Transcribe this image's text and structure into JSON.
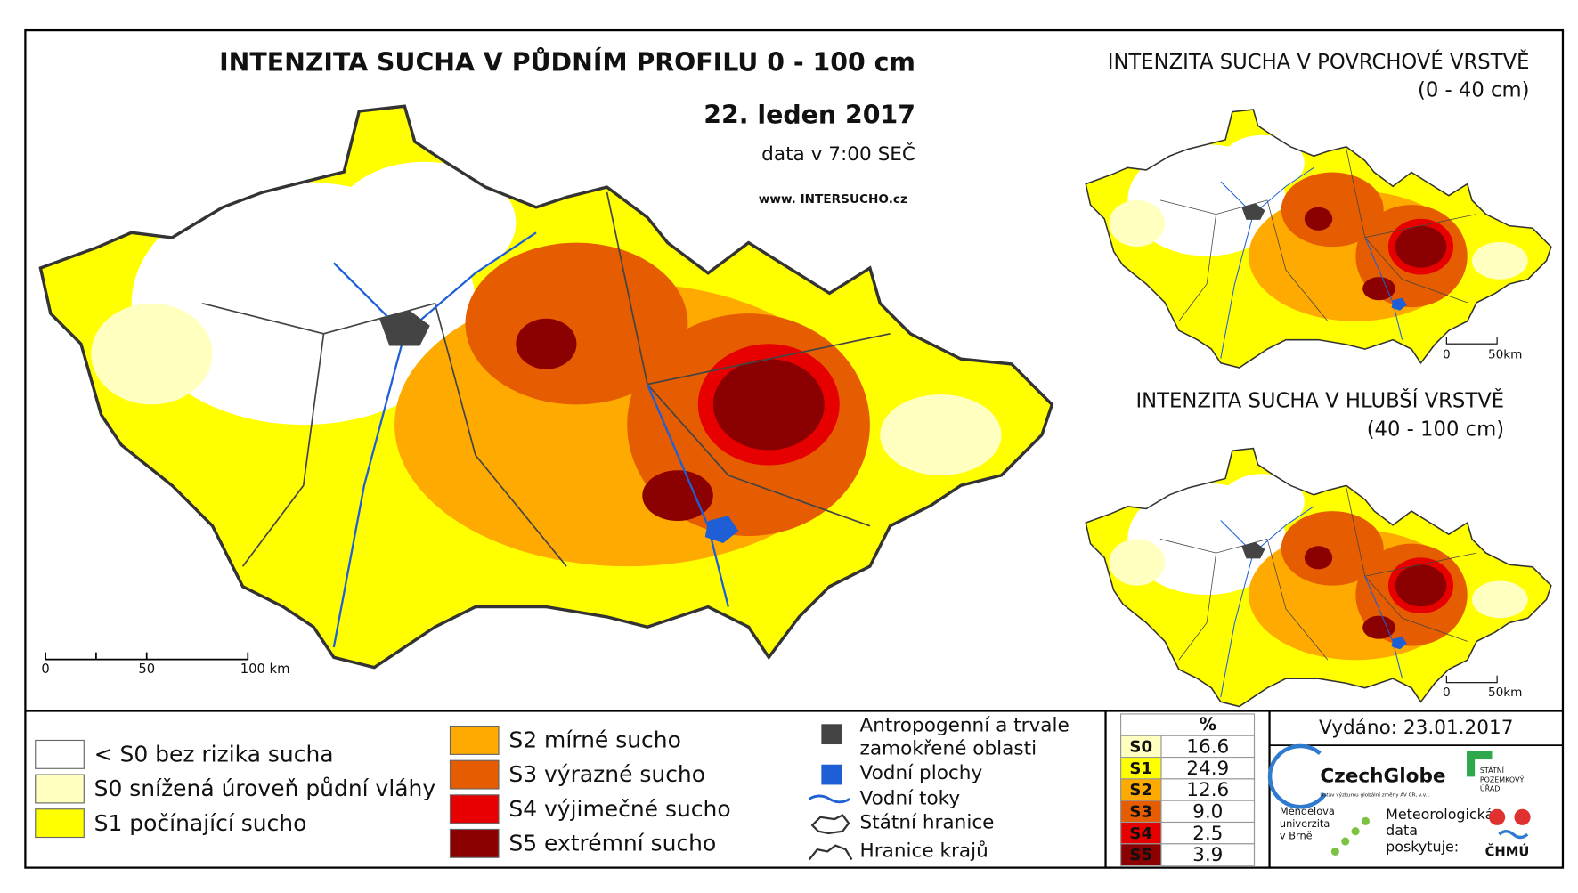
{
  "main_map": {
    "title": "INTENZITA SUCHA V PŮDNÍM PROFILU 0 - 100 cm",
    "date": "22. leden 2017",
    "data_time": "data v 7:00 SEČ",
    "website": "www. INTERSUCHO.cz",
    "scale_labels": [
      "0",
      "50",
      "100 km"
    ]
  },
  "inset_surface": {
    "title": "INTENZITA SUCHA V POVRCHOVÉ VRSTVĚ",
    "subtitle": "(0 - 40 cm)",
    "scale_labels": [
      "0",
      "50km"
    ]
  },
  "inset_deep": {
    "title": "INTENZITA SUCHA V HLUBŠÍ VRSTVĚ",
    "subtitle": "(40 - 100 cm)",
    "scale_labels": [
      "0",
      "50km"
    ]
  },
  "legend": {
    "drought_classes": [
      {
        "label": "< S0 bez rizika sucha",
        "color": "#ffffff"
      },
      {
        "label": "S0 snížená úroveň půdní vláhy",
        "color": "#ffffc0"
      },
      {
        "label": "S1 počínající sucho",
        "color": "#ffff00"
      },
      {
        "label": "S2 mírné sucho",
        "color": "#ffaa00"
      },
      {
        "label": "S3 výrazné sucho",
        "color": "#e65c00"
      },
      {
        "label": "S4 výjimečné sucho",
        "color": "#e60000"
      },
      {
        "label": "S5 extrémní sucho",
        "color": "#8b0000"
      }
    ],
    "features": [
      {
        "lines": [
          "Antropogenní a trvale",
          "zamokřené oblasti"
        ]
      },
      {
        "lines": [
          "Vodní plochy"
        ]
      },
      {
        "lines": [
          "Vodní toky"
        ]
      },
      {
        "lines": [
          "Státní hranice"
        ]
      },
      {
        "lines": [
          "Hranice krajů"
        ]
      }
    ]
  },
  "stats_table": {
    "header": "%",
    "rows": [
      [
        "S0",
        "16.6"
      ],
      [
        "S1",
        "24.9"
      ],
      [
        "S2",
        "12.6"
      ],
      [
        "S3",
        "9.0"
      ],
      [
        "S4",
        "2.5"
      ],
      [
        "S5",
        "3.9"
      ]
    ]
  },
  "issued": "Vydáno: 23.01.2017",
  "logos": {
    "czechglobe": "CzechGlobe",
    "czechglobe_sub": "Ústav výzkumu globální změny AV ČR, v.v.i.",
    "mendelu": [
      "Mendelova",
      "univerzita",
      "v Brně"
    ],
    "spu": [
      "STÁTNÍ",
      "POZEMKOVÝ",
      "ÚŘAD"
    ],
    "chmu_note": [
      "Meteorologická",
      "data",
      "poskytuje:"
    ],
    "chmu": "ČHMÚ"
  }
}
